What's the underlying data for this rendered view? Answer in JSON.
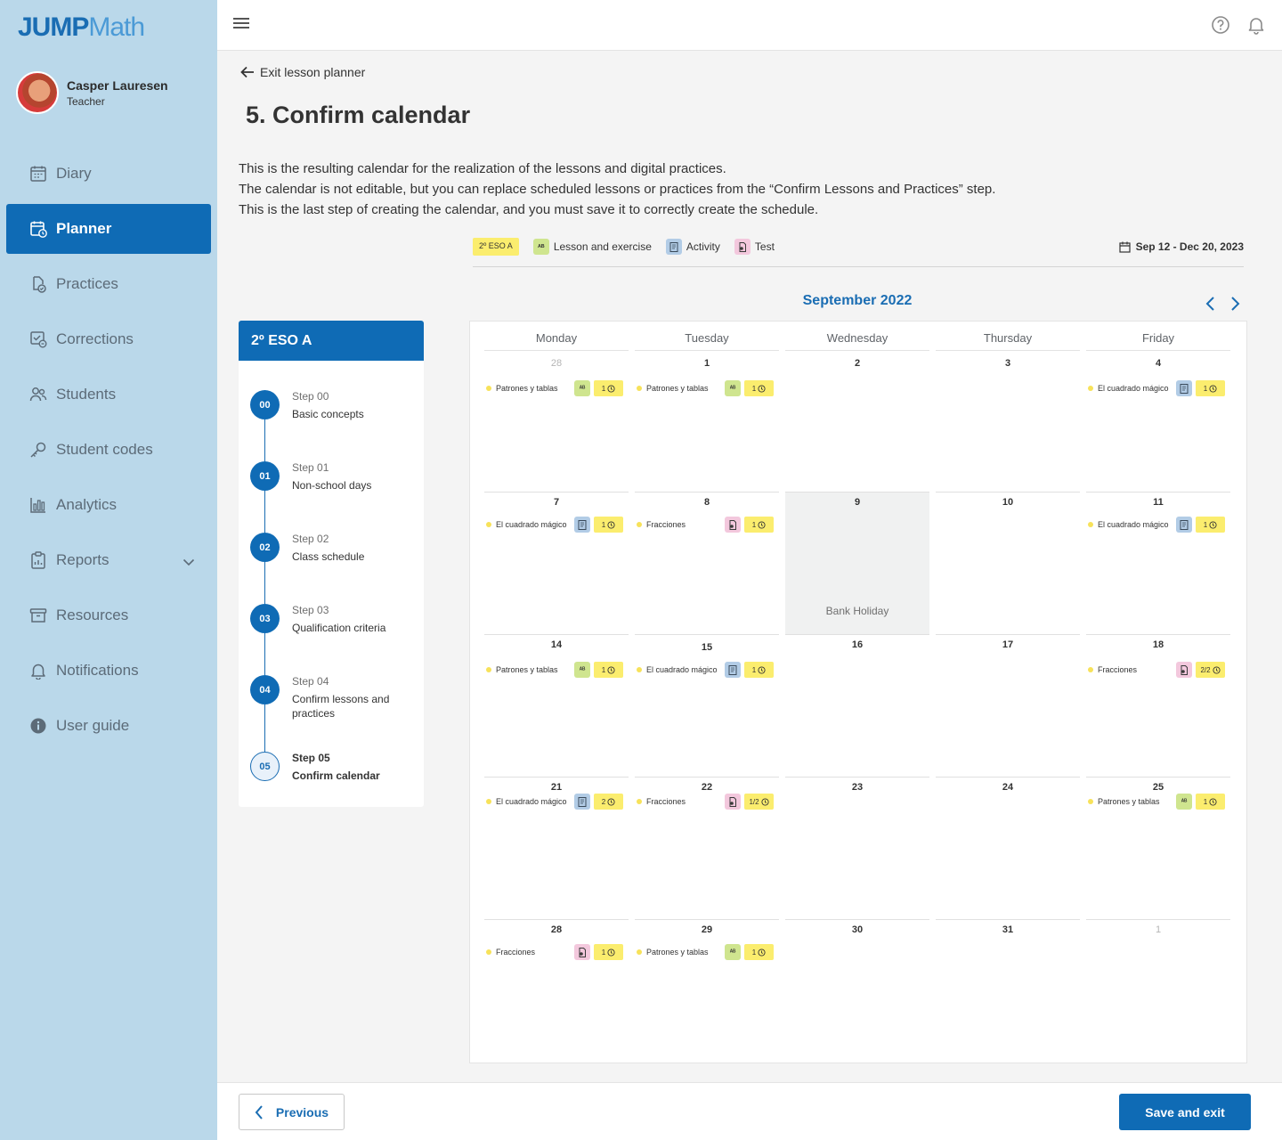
{
  "app": {
    "logo_jump": "JUMP",
    "logo_math": "Math"
  },
  "user": {
    "name": "Casper Lauresen",
    "role": "Teacher"
  },
  "nav": [
    {
      "label": "Diary",
      "icon": "calendar-icon"
    },
    {
      "label": "Planner",
      "icon": "planner-icon",
      "active": true
    },
    {
      "label": "Practices",
      "icon": "practices-icon"
    },
    {
      "label": "Corrections",
      "icon": "corrections-icon"
    },
    {
      "label": "Students",
      "icon": "students-icon"
    },
    {
      "label": "Student codes",
      "icon": "key-icon"
    },
    {
      "label": "Analytics",
      "icon": "analytics-icon"
    },
    {
      "label": "Reports",
      "icon": "reports-icon",
      "expandable": true
    },
    {
      "label": "Resources",
      "icon": "archive-icon"
    },
    {
      "label": "Notifications",
      "icon": "bell-icon"
    },
    {
      "label": "User guide",
      "icon": "info-icon"
    }
  ],
  "header": {
    "exit_label": "Exit lesson planner",
    "title": "5.  Confirm calendar"
  },
  "description": [
    "This is the resulting calendar for the realization of the lessons and digital practices.",
    "The calendar is not editable, but you can replace scheduled lessons or practices from the “Confirm Lessons and Practices” step.",
    "This is the last step of creating the calendar, and you must save it to correctly create the schedule."
  ],
  "legend": {
    "group": "2º ESO A",
    "lesson": "Lesson and exercise",
    "activity": "Activity",
    "test": "Test",
    "date_range": "Sep 12 - Dec 20, 2023"
  },
  "calendar": {
    "month": "September 2022",
    "weekdays": [
      "Monday",
      "Tuesday",
      "Wednesday",
      "Thursday",
      "Friday"
    ],
    "weeks": [
      [
        {
          "day": "28",
          "muted": true,
          "events": [
            {
              "name": "Patrones y tablas",
              "type": "lesson",
              "count": "1"
            }
          ]
        },
        {
          "day": "1",
          "events": [
            {
              "name": "Patrones y tablas",
              "type": "lesson",
              "count": "1"
            }
          ]
        },
        {
          "day": "2",
          "events": []
        },
        {
          "day": "3",
          "events": []
        },
        {
          "day": "4",
          "events": [
            {
              "name": "El cuadrado mágico",
              "type": "activity",
              "count": "1"
            }
          ]
        }
      ],
      [
        {
          "day": "7",
          "events": [
            {
              "name": "El cuadrado mágico",
              "type": "activity",
              "count": "1"
            }
          ]
        },
        {
          "day": "8",
          "events": [
            {
              "name": "Fracciones",
              "type": "test",
              "count": "1"
            }
          ]
        },
        {
          "day": "9",
          "holiday": "Bank Holiday",
          "events": []
        },
        {
          "day": "10",
          "events": []
        },
        {
          "day": "11",
          "events": [
            {
              "name": "El cuadrado mágico",
              "type": "activity",
              "count": "1"
            }
          ]
        }
      ],
      [
        {
          "day": "14",
          "events": [
            {
              "name": "Patrones y tablas",
              "type": "lesson",
              "count": "1"
            }
          ]
        },
        {
          "day": "15",
          "events": [
            {
              "name": "El cuadrado mágico",
              "type": "activity",
              "count": "1"
            }
          ]
        },
        {
          "day": "16",
          "events": []
        },
        {
          "day": "17",
          "events": []
        },
        {
          "day": "18",
          "events": [
            {
              "name": "Fracciones",
              "type": "test",
              "count": "2/2"
            }
          ]
        }
      ],
      [
        {
          "day": "21",
          "events": [
            {
              "name": "El cuadrado mágico",
              "type": "activity",
              "count": "2"
            }
          ]
        },
        {
          "day": "22",
          "events": [
            {
              "name": "Fracciones",
              "type": "test",
              "count": "1/2"
            }
          ]
        },
        {
          "day": "23",
          "events": []
        },
        {
          "day": "24",
          "events": []
        },
        {
          "day": "25",
          "events": [
            {
              "name": "Patrones y tablas",
              "type": "lesson",
              "count": "1"
            }
          ]
        }
      ],
      [
        {
          "day": "28",
          "events": [
            {
              "name": "Fracciones",
              "type": "test",
              "count": "1"
            }
          ]
        },
        {
          "day": "29",
          "events": [
            {
              "name": "Patrones y tablas",
              "type": "lesson",
              "count": "1"
            }
          ]
        },
        {
          "day": "30",
          "events": []
        },
        {
          "day": "31",
          "events": []
        },
        {
          "day": "1",
          "muted": true,
          "events": []
        }
      ]
    ]
  },
  "steps_card": {
    "title": "2º ESO A",
    "steps": [
      {
        "num": "00",
        "label": "Step 00",
        "name": "Basic concepts"
      },
      {
        "num": "01",
        "label": "Step 01",
        "name": "Non-school days"
      },
      {
        "num": "02",
        "label": "Step 02",
        "name": "Class schedule"
      },
      {
        "num": "03",
        "label": "Step 03",
        "name": "Qualification criteria"
      },
      {
        "num": "04",
        "label": "Step 04",
        "name": "Confirm lessons and practices"
      },
      {
        "num": "05",
        "label": "Step 05",
        "name": "Confirm calendar",
        "current": true
      }
    ]
  },
  "footer": {
    "previous": "Previous",
    "save": "Save and exit"
  },
  "colors": {
    "primary": "#0f6bb5",
    "sidebar": "#bad8ea",
    "lesson": "#cfe58f",
    "activity": "#b2cce6",
    "test": "#f3c8dd",
    "count": "#fbed6e"
  }
}
